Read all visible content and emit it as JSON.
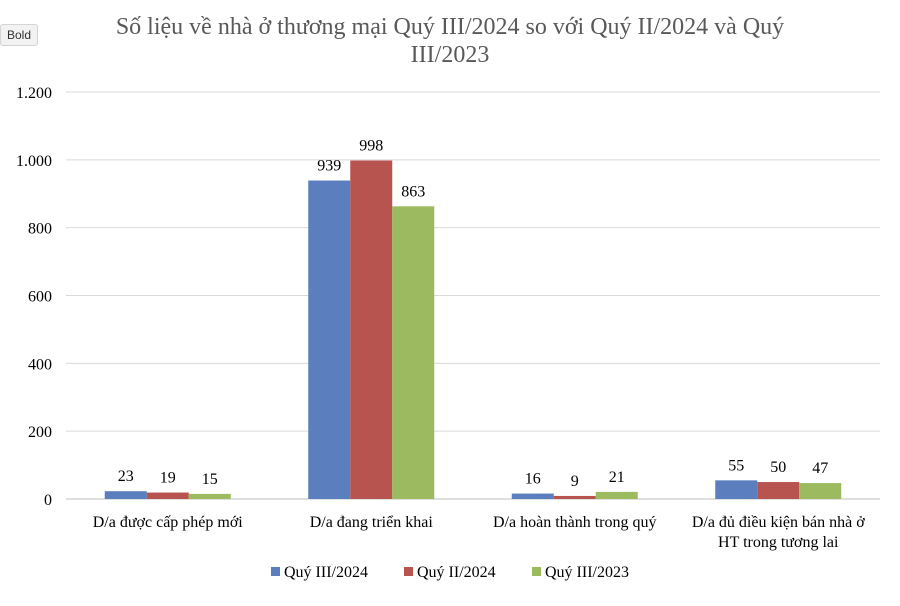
{
  "tooltip": "Bold",
  "colors": {
    "series": [
      "#5b7fbe",
      "#b85450",
      "#9cbb61"
    ],
    "grid": "#d9d9d9",
    "axis": "#bfbfbf"
  },
  "chart_data": {
    "type": "bar",
    "title": "Số liệu về nhà ở thương mại Quý III/2024 so với Quý II/2024 và Quý III/2023",
    "title_lines": [
      "Số liệu về nhà ở thương mại Quý III/2024 so với Quý II/2024 và Quý",
      "III/2023"
    ],
    "categories": [
      [
        "D/a được cấp phép mới"
      ],
      [
        "D/a đang triển khai"
      ],
      [
        "D/a hoàn thành trong quý"
      ],
      [
        "D/a đủ điều kiện bán nhà ở",
        "HT trong tương lai"
      ]
    ],
    "series": [
      {
        "name": "Quý III/2024",
        "values": [
          23,
          939,
          16,
          55
        ]
      },
      {
        "name": "Quý II/2024",
        "values": [
          19,
          998,
          9,
          50
        ]
      },
      {
        "name": "Quý III/2023",
        "values": [
          15,
          863,
          21,
          47
        ]
      }
    ],
    "ylim": [
      0,
      1200
    ],
    "yticks": [
      0,
      200,
      400,
      600,
      800,
      1000,
      1200
    ],
    "ytick_labels": [
      "0",
      "200",
      "400",
      "600",
      "800",
      "1.000",
      "1.200"
    ],
    "grid": true,
    "legend": "bottom"
  }
}
